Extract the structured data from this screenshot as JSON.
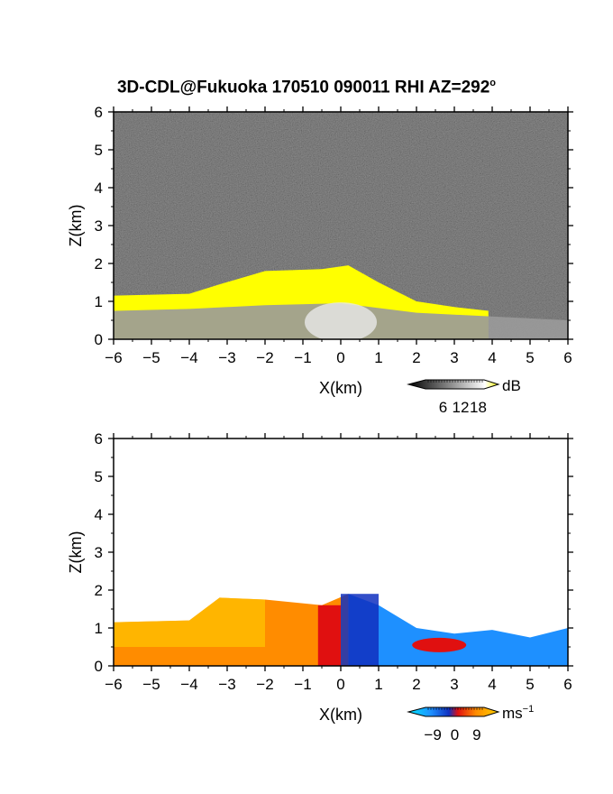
{
  "title": {
    "text": "3D-CDL@Fukuoka 170510 090011 RHI AZ=292",
    "degree_mark": "o"
  },
  "chart_data": [
    {
      "type": "heatmap",
      "name": "intensity",
      "xlabel": "X(km)",
      "ylabel": "Z(km)",
      "xlim": [
        -6,
        6
      ],
      "ylim": [
        0,
        6
      ],
      "x_ticks": [
        "−6",
        "−5",
        "−4",
        "−3",
        "−2",
        "−1",
        "0",
        "1",
        "2",
        "3",
        "4",
        "5",
        "6"
      ],
      "y_ticks": [
        "0",
        "1",
        "2",
        "3",
        "4",
        "5",
        "6"
      ],
      "background": "#2a2a2a",
      "colorbar": {
        "unit": "dB",
        "tick_labels": [
          "6",
          "12",
          "18"
        ],
        "tick_values": [
          6,
          12,
          18
        ],
        "range": [
          0,
          20
        ],
        "colors": [
          "#000000",
          "#ffffff",
          "#ffff00"
        ]
      },
      "features": {
        "aerosol_layer_top_km": [
          {
            "x": -6,
            "z": 0.75
          },
          {
            "x": -4,
            "z": 0.8
          },
          {
            "x": -2,
            "z": 0.9
          },
          {
            "x": 0,
            "z": 0.95
          },
          {
            "x": 2,
            "z": 0.7
          },
          {
            "x": 4,
            "z": 0.6
          },
          {
            "x": 6,
            "z": 0.5
          }
        ],
        "saturated_echo_top_km": [
          {
            "x": -6,
            "z": 1.15
          },
          {
            "x": -4,
            "z": 1.2
          },
          {
            "x": -3.2,
            "z": 1.45
          },
          {
            "x": -2,
            "z": 1.8
          },
          {
            "x": -0.5,
            "z": 1.85
          },
          {
            "x": 0.2,
            "z": 1.95
          },
          {
            "x": 1,
            "z": 1.5
          },
          {
            "x": 2,
            "z": 1.0
          },
          {
            "x": 3,
            "z": 0.85
          },
          {
            "x": 3.9,
            "z": 0.75
          }
        ]
      }
    },
    {
      "type": "heatmap",
      "name": "doppler_velocity",
      "xlabel": "X(km)",
      "ylabel": "Z(km)",
      "xlim": [
        -6,
        6
      ],
      "ylim": [
        0,
        6
      ],
      "x_ticks": [
        "−6",
        "−5",
        "−4",
        "−3",
        "−2",
        "−1",
        "0",
        "1",
        "2",
        "3",
        "4",
        "5",
        "6"
      ],
      "y_ticks": [
        "0",
        "1",
        "2",
        "3",
        "4",
        "5",
        "6"
      ],
      "background": "#ffffff",
      "colorbar": {
        "unit": "ms",
        "unit_superscript": "−1",
        "tick_labels": [
          "−9",
          "0",
          "9"
        ],
        "tick_values": [
          -9,
          0,
          9
        ],
        "range": [
          -12,
          12
        ],
        "colors": [
          "#00e5ff",
          "#1e90ff",
          "#1030c0",
          "#e01010",
          "#ff8c00",
          "#ffd000"
        ]
      },
      "features": {
        "echo_top_km": [
          {
            "x": -6,
            "z": 1.15
          },
          {
            "x": -4,
            "z": 1.2
          },
          {
            "x": -3.2,
            "z": 1.8
          },
          {
            "x": -2,
            "z": 1.75
          },
          {
            "x": -0.5,
            "z": 1.6
          },
          {
            "x": 0.2,
            "z": 1.9
          },
          {
            "x": 1,
            "z": 1.6
          },
          {
            "x": 2,
            "z": 1.0
          },
          {
            "x": 3,
            "z": 0.85
          },
          {
            "x": 4,
            "z": 0.95
          },
          {
            "x": 5,
            "z": 0.75
          },
          {
            "x": 6,
            "z": 1.0
          }
        ],
        "velocity_sign_boundary_x_km": 0
      }
    }
  ]
}
